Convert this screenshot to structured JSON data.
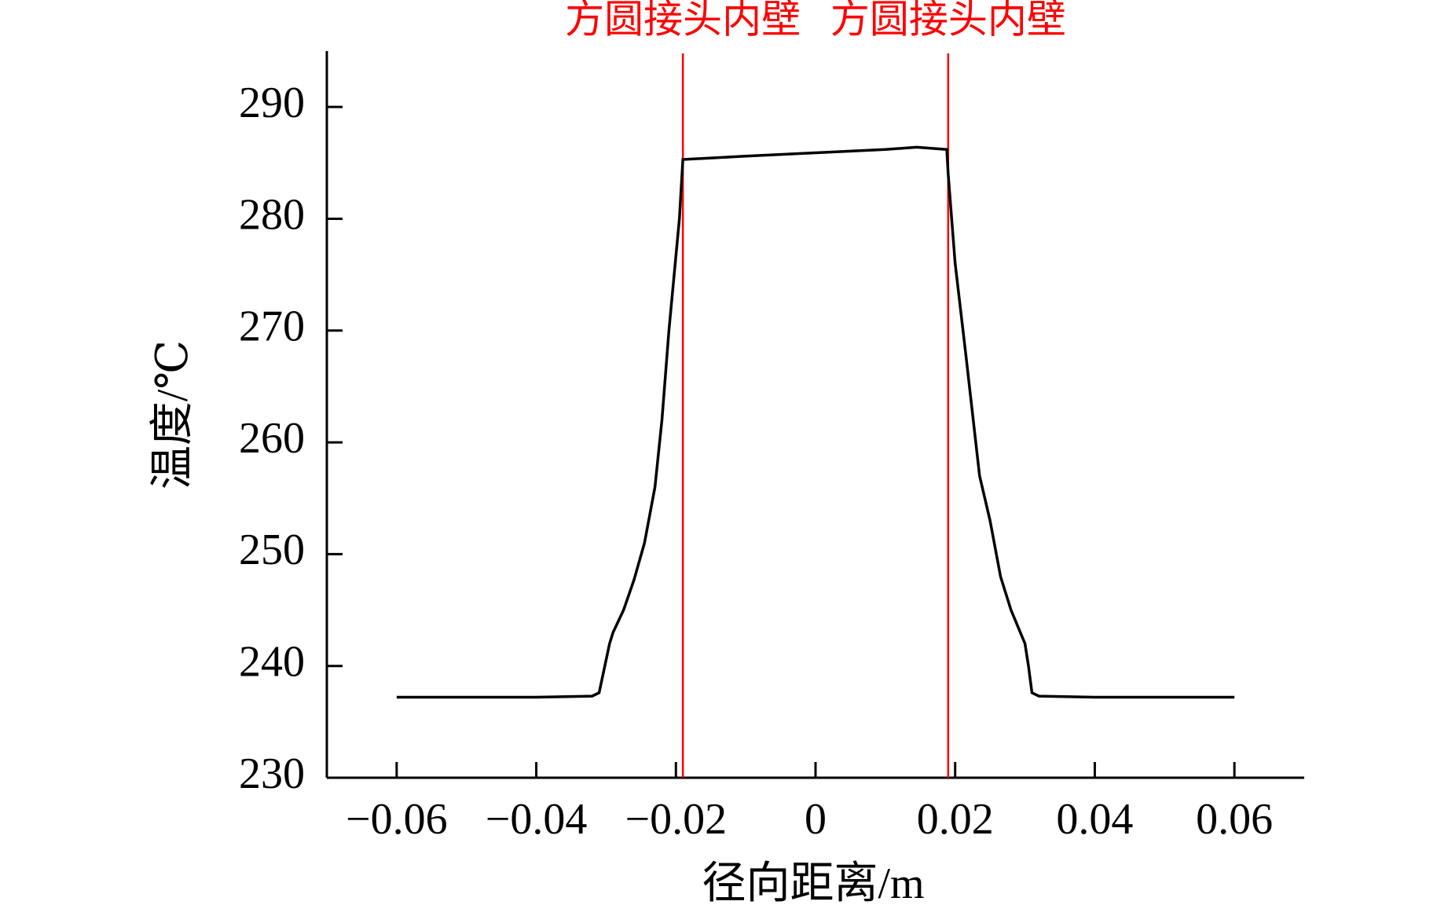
{
  "chart_data": {
    "type": "line",
    "xlabel": "径向距离/m",
    "ylabel": "温度/℃",
    "xlim": [
      -0.07,
      0.07
    ],
    "ylim": [
      230,
      295
    ],
    "xticks": [
      {
        "value": -0.06,
        "label": "−0.06"
      },
      {
        "value": -0.04,
        "label": "−0.04"
      },
      {
        "value": -0.02,
        "label": "−0.02"
      },
      0,
      0.02,
      0.04,
      0.06
    ],
    "yticks": [
      230,
      240,
      250,
      260,
      270,
      280,
      290
    ],
    "vlines": [
      {
        "x": -0.019,
        "label": "方圆接头内壁",
        "color": "#ff0000"
      },
      {
        "x": 0.019,
        "label": "方圆接头内壁",
        "color": "#ff0000"
      }
    ],
    "series": [
      {
        "color": "#000000",
        "x": [
          -0.06,
          -0.05,
          -0.04,
          -0.032,
          -0.031,
          -0.0295,
          -0.029,
          -0.0275,
          -0.026,
          -0.0245,
          -0.023,
          -0.022,
          -0.021,
          -0.0195,
          -0.019,
          -0.01,
          0,
          0.01,
          0.0145,
          0.0188,
          0.019,
          0.02,
          0.0215,
          0.0235,
          0.025,
          0.0265,
          0.028,
          0.03,
          0.0305,
          0.031,
          0.032,
          0.04,
          0.05,
          0.06
        ],
        "values": [
          237.2,
          237.2,
          237.2,
          237.3,
          237.6,
          242,
          243,
          245,
          247.7,
          251,
          256,
          262,
          270,
          280,
          285.3,
          285.6,
          285.9,
          286.2,
          286.4,
          286.2,
          284,
          276,
          268,
          257,
          253,
          248,
          245,
          242,
          240,
          237.6,
          237.3,
          237.2,
          237.2,
          237.2
        ]
      }
    ]
  }
}
